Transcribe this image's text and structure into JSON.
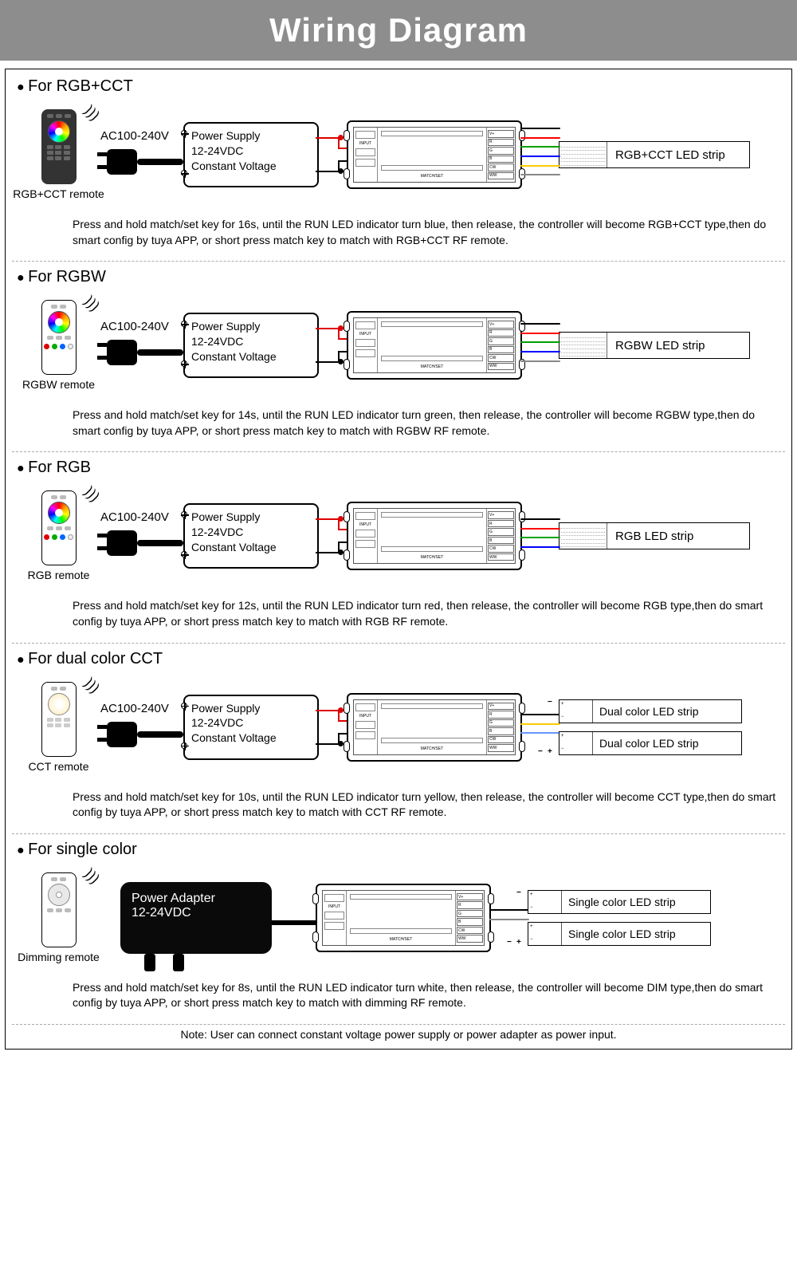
{
  "title": "Wiring Diagram",
  "ac_voltage": "AC100-240V",
  "psu_line1": "Power Supply",
  "psu_line2": "12-24VDC",
  "psu_line3": "Constant Voltage",
  "adapter_line1": "Power Adapter",
  "adapter_line2": "12-24VDC",
  "note": "Note: User can connect constant voltage power supply or power adapter as power input.",
  "wire_colors": {
    "rgbcct": [
      "#000000",
      "#ff0000",
      "#00a000",
      "#0000ff",
      "#ffcc00",
      "#ffffff"
    ],
    "rgbw": [
      "#000000",
      "#ff0000",
      "#00a000",
      "#0000ff",
      "#cccccc"
    ],
    "rgb": [
      "#000000",
      "#ff0000",
      "#00a000",
      "#0000ff"
    ],
    "cct": [
      "#000000",
      "#ffcc00",
      "#6699ff"
    ],
    "dim": [
      "#000000",
      "#888888"
    ]
  },
  "sections": [
    {
      "id": "rgbcct",
      "title": "For RGB+CCT",
      "remote_label": "RGB+CCT remote",
      "remote_style": "dark-wheel",
      "strip_label": "RGB+CCT LED strip",
      "strip_count": 1,
      "wire_set": "rgbcct",
      "instruction": "Press and hold match/set key for 16s, until the RUN LED indicator turn blue, then release, the controller will become RGB+CCT type,then do smart config by tuya APP, or short press match key to match with RGB+CCT RF remote."
    },
    {
      "id": "rgbw",
      "title": "For RGBW",
      "remote_label": "RGBW remote",
      "remote_style": "white-wheel-dots",
      "strip_label": "RGBW LED strip",
      "strip_count": 1,
      "wire_set": "rgbw",
      "instruction": "Press and hold match/set key for 14s, until the RUN LED indicator turn green, then release, the controller will become RGBW type,then do smart config by tuya APP, or short press match key to match with RGBW RF remote."
    },
    {
      "id": "rgb",
      "title": "For RGB",
      "remote_label": "RGB remote",
      "remote_style": "white-wheel-dots",
      "strip_label": "RGB LED strip",
      "strip_count": 1,
      "wire_set": "rgb",
      "instruction": "Press and hold match/set key for 12s, until the RUN LED indicator turn red, then release, the controller will become RGB type,then do smart config by tuya APP, or short press match key to match with RGB RF remote."
    },
    {
      "id": "cct",
      "title": "For dual color CCT",
      "remote_label": "CCT remote",
      "remote_style": "white-cct",
      "strip_label": "Dual color LED strip",
      "strip_count": 2,
      "wire_set": "cct",
      "instruction": "Press and hold match/set key for 10s, until the RUN LED indicator turn yellow, then release, the controller will become CCT type,then do smart config by tuya APP, or short press match key to match with CCT RF remote."
    },
    {
      "id": "dim",
      "title": "For single color",
      "remote_label": "Dimming remote",
      "remote_style": "white-dim",
      "strip_label": "Single color LED strip",
      "strip_count": 2,
      "wire_set": "dim",
      "use_adapter": true,
      "instruction": "Press and hold match/set key for 8s, until the RUN LED indicator turn white, then release, the controller will become DIM type,then do smart config by tuya APP, or short press match key to match with dimming RF remote."
    }
  ]
}
